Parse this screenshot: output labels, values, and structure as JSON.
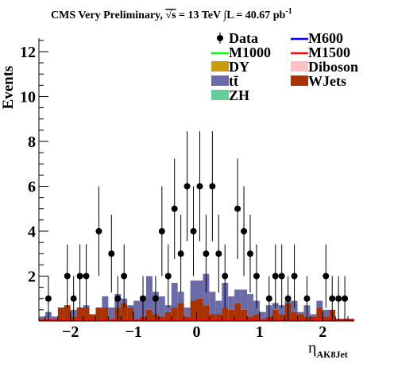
{
  "header": {
    "title_left": "CMS Very Preliminary, ",
    "sqrt_s": "√s",
    "title_mid": " = 13 TeV ∫L = 40.67 pb",
    "title_sup": "-1"
  },
  "colors": {
    "ttbar": "#6b6ba8",
    "wjets": "#a83200",
    "dy": "#cc9a0a",
    "diboson": "#fbc2c2",
    "zh": "#66cc99",
    "m1000": "#00ff00",
    "m1500": "#ff0000",
    "m600": "#0000ff",
    "data": "#000000"
  },
  "chart_data": {
    "type": "bar",
    "title": "CMS Very Preliminary, √s = 13 TeV ∫L = 40.67 pb-1",
    "xlabel": "η",
    "xlabel_sub": "AK8Jet",
    "ylabel": "Events",
    "xlim": [
      -2.5,
      2.5
    ],
    "ylim": [
      0,
      12.6
    ],
    "x_ticks": [
      -2,
      -1,
      0,
      1,
      2
    ],
    "x_tick_labels": [
      "−2",
      "−1",
      "0",
      "1",
      "2"
    ],
    "y_ticks": [
      2,
      4,
      6,
      8,
      10,
      12
    ],
    "y_tick_labels": [
      "2",
      "4",
      "6",
      "8",
      "10",
      "12"
    ],
    "legend": [
      {
        "label": "Data",
        "style": "marker",
        "key": "data"
      },
      {
        "label": "M600",
        "style": "line",
        "key": "m600"
      },
      {
        "label": "M1000",
        "style": "line",
        "key": "m1000"
      },
      {
        "label": "M1500",
        "style": "line",
        "key": "m1500"
      },
      {
        "label": "DY",
        "style": "fill",
        "key": "dy"
      },
      {
        "label": "Diboson",
        "style": "fill",
        "key": "diboson"
      },
      {
        "label": "tt̄",
        "style": "fill",
        "key": "ttbar"
      },
      {
        "label": "WJets",
        "style": "fill",
        "key": "wjets"
      },
      {
        "label": "ZH",
        "style": "fill",
        "key": "zh"
      }
    ],
    "bin_edges": [
      -2.5,
      -2.4,
      -2.3,
      -2.2,
      -2.1,
      -2.0,
      -1.9,
      -1.8,
      -1.7,
      -1.6,
      -1.5,
      -1.4,
      -1.3,
      -1.2,
      -1.1,
      -1.0,
      -0.9,
      -0.8,
      -0.7,
      -0.6,
      -0.5,
      -0.4,
      -0.3,
      -0.2,
      -0.1,
      0.0,
      0.1,
      0.2,
      0.3,
      0.4,
      0.5,
      0.6,
      0.7,
      0.8,
      0.9,
      1.0,
      1.1,
      1.2,
      1.3,
      1.4,
      1.5,
      1.6,
      1.7,
      1.8,
      1.9,
      2.0,
      2.1,
      2.2,
      2.3,
      2.4,
      2.5
    ],
    "stack": [
      {
        "name": "WJets",
        "key": "wjets",
        "values": [
          0.1,
          0.1,
          0.1,
          0.6,
          0.7,
          0.2,
          0.6,
          0.6,
          0.3,
          0.6,
          0.6,
          0.1,
          0.6,
          0.8,
          0.6,
          0.1,
          0.2,
          0.5,
          0.3,
          0.2,
          0.4,
          0.6,
          0.8,
          0.2,
          0.9,
          1.0,
          0.7,
          0.3,
          0.3,
          0.6,
          0.5,
          0.8,
          0.5,
          0.2,
          0.3,
          0.1,
          0.2,
          0.5,
          0.3,
          0.8,
          0.4,
          0.3,
          0.2,
          0.2,
          0.6,
          0.2,
          0.5,
          0.1,
          0.1,
          0.1
        ]
      },
      {
        "name": "tt̄",
        "key": "ttbar",
        "values": [
          0.1,
          0.3,
          0.1,
          0.0,
          0.0,
          0.3,
          0.0,
          0.1,
          0.0,
          0.0,
          0.5,
          0.5,
          0.6,
          0.2,
          0.1,
          0.8,
          0.9,
          1.5,
          1.0,
          0.9,
          0.3,
          1.1,
          0.5,
          0.4,
          0.9,
          0.8,
          1.4,
          1.0,
          0.6,
          1.1,
          0.6,
          0.6,
          0.9,
          1.0,
          0.6,
          0.3,
          0.5,
          0.3,
          0.4,
          0.1,
          0.5,
          0.1,
          0.5,
          0.1,
          0.3,
          0.3,
          0.0,
          0.0,
          0.0,
          0.0
        ]
      },
      {
        "name": "DY",
        "key": "dy",
        "values": [
          0,
          0,
          0,
          0,
          0,
          0,
          0,
          0,
          0,
          0,
          0,
          0,
          0,
          0,
          0,
          0,
          0,
          0,
          0,
          0,
          0,
          0,
          0,
          0,
          0,
          0,
          0,
          0,
          0,
          0,
          0,
          0,
          0,
          0,
          0,
          0,
          0,
          0,
          0,
          0,
          0,
          0,
          0,
          0,
          0,
          0,
          0,
          0,
          0,
          0
        ]
      },
      {
        "name": "Diboson",
        "key": "diboson",
        "values": [
          0,
          0,
          0,
          0,
          0,
          0,
          0,
          0,
          0,
          0,
          0,
          0,
          0,
          0,
          0,
          0,
          0,
          0,
          0,
          0,
          0,
          0,
          0,
          0,
          0,
          0,
          0,
          0,
          0,
          0,
          0,
          0,
          0,
          0,
          0,
          0,
          0,
          0,
          0,
          0,
          0,
          0,
          0,
          0,
          0,
          0,
          0,
          0,
          0,
          0
        ]
      },
      {
        "name": "ZH",
        "key": "zh",
        "values": [
          0,
          0,
          0,
          0,
          0,
          0,
          0,
          0,
          0,
          0,
          0,
          0,
          0,
          0,
          0,
          0,
          0,
          0,
          0,
          0,
          0,
          0,
          0,
          0,
          0,
          0,
          0,
          0,
          0,
          0,
          0,
          0,
          0,
          0,
          0,
          0,
          0,
          0,
          0,
          0,
          0,
          0,
          0,
          0,
          0,
          0,
          0,
          0,
          0,
          0
        ]
      }
    ],
    "signals": [
      {
        "name": "M600",
        "key": "m600",
        "value": 0
      },
      {
        "name": "M1000",
        "key": "m1000",
        "value": 0
      },
      {
        "name": "M1500",
        "key": "m1500",
        "value": 0
      }
    ],
    "data_points": [
      {
        "x": -2.35,
        "y": 1
      },
      {
        "x": -2.05,
        "y": 2
      },
      {
        "x": -1.95,
        "y": 1
      },
      {
        "x": -1.85,
        "y": 2
      },
      {
        "x": -1.75,
        "y": 2
      },
      {
        "x": -1.55,
        "y": 4
      },
      {
        "x": -1.35,
        "y": 3
      },
      {
        "x": -1.25,
        "y": 1
      },
      {
        "x": -1.15,
        "y": 2
      },
      {
        "x": -0.85,
        "y": 1
      },
      {
        "x": -0.65,
        "y": 1
      },
      {
        "x": -0.55,
        "y": 4
      },
      {
        "x": -0.45,
        "y": 2
      },
      {
        "x": -0.35,
        "y": 5
      },
      {
        "x": -0.25,
        "y": 3
      },
      {
        "x": -0.15,
        "y": 6
      },
      {
        "x": -0.05,
        "y": 4
      },
      {
        "x": 0.05,
        "y": 6
      },
      {
        "x": 0.15,
        "y": 3
      },
      {
        "x": 0.25,
        "y": 6
      },
      {
        "x": 0.35,
        "y": 3
      },
      {
        "x": 0.45,
        "y": 2
      },
      {
        "x": 0.65,
        "y": 5
      },
      {
        "x": 0.75,
        "y": 4
      },
      {
        "x": 0.85,
        "y": 3
      },
      {
        "x": 0.95,
        "y": 2
      },
      {
        "x": 1.15,
        "y": 1
      },
      {
        "x": 1.25,
        "y": 2
      },
      {
        "x": 1.35,
        "y": 2
      },
      {
        "x": 1.45,
        "y": 1
      },
      {
        "x": 1.55,
        "y": 2
      },
      {
        "x": 1.75,
        "y": 1
      },
      {
        "x": 2.05,
        "y": 2
      },
      {
        "x": 2.15,
        "y": 1
      },
      {
        "x": 2.25,
        "y": 1
      },
      {
        "x": 2.35,
        "y": 1
      }
    ],
    "grid": false,
    "legend_position": "top-right"
  }
}
